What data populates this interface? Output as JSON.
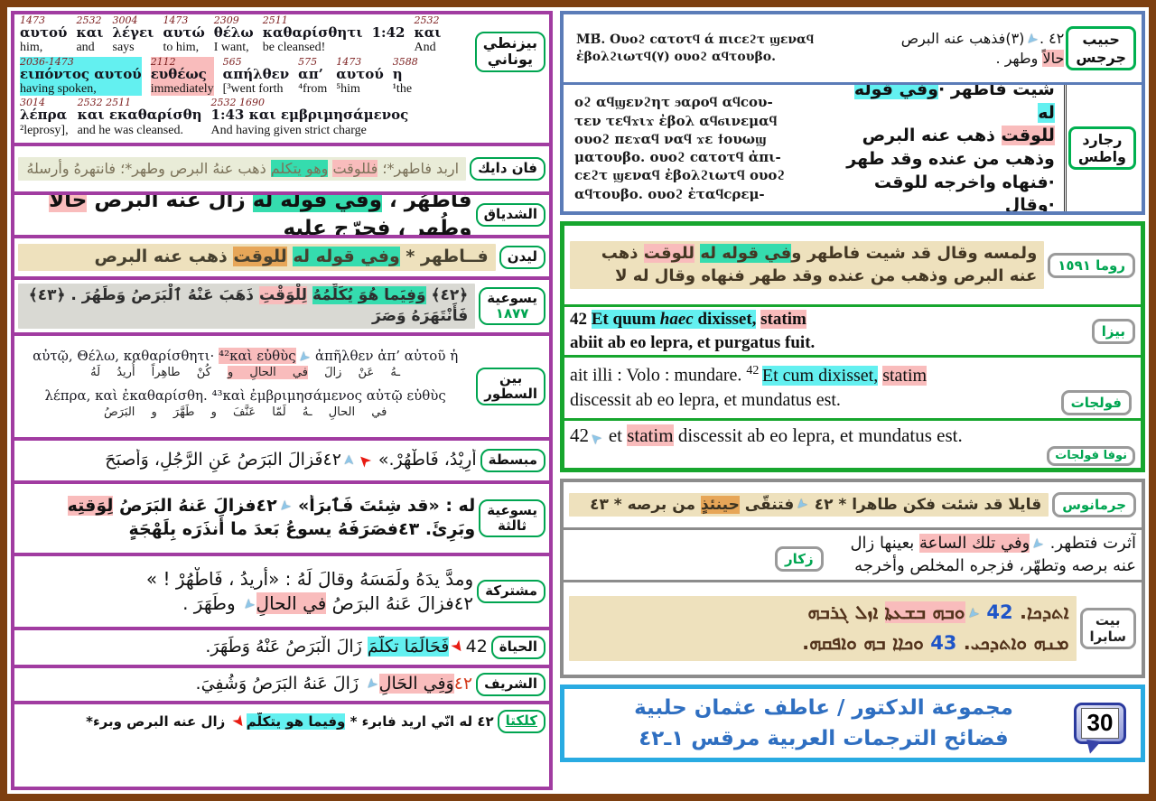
{
  "accent_colors": {
    "purple": "#a13ca1",
    "frame_brown": "#7d3f10",
    "green_border": "#17a62e",
    "blue_border": "#5b7cb8",
    "gray_border": "#8c8c8c",
    "light_blue_border": "#29abe2",
    "label_green": "#00a551",
    "hl_cyan": "#63f0f0",
    "hl_teal": "#35dcae",
    "hl_pink": "#f9bcbc",
    "hl_orange": "#e7a658"
  },
  "interlinear": {
    "label": [
      "بيزنطي",
      "يوناني"
    ],
    "lines": [
      [
        {
          "n": "1473",
          "g": "αυτού",
          "e": "him,"
        },
        {
          "n": "2532",
          "g": "και",
          "e": "and"
        },
        {
          "n": "3004",
          "g": "λέγει",
          "e": "says"
        },
        {
          "n": "1473",
          "g": "αυτώ",
          "e": "to him,"
        },
        {
          "n": "2309",
          "g": "θέλω",
          "e": "I want,"
        },
        {
          "n": "2511",
          "g": "καθαρίσθητι",
          "e": "be cleansed!"
        },
        {
          "n": "",
          "g": "1:42",
          "e": ""
        },
        {
          "n": "2532",
          "g": "και",
          "e": "And"
        }
      ],
      [
        {
          "n": "2036-1473",
          "g": "ειπόντος αυτού",
          "e": "having spoken,",
          "h": "cyan"
        },
        {
          "n": "2112",
          "g": "ευθέως",
          "e": "immediately",
          "h": "pink"
        },
        {
          "n": "565",
          "g": "απήλθεν",
          "e": "[³went forth"
        },
        {
          "n": "575",
          "g": "απ’",
          "e": "⁴from"
        },
        {
          "n": "1473",
          "g": "αυτού",
          "e": "⁵him"
        },
        {
          "n": "3588",
          "g": "η",
          "e": "¹the"
        }
      ],
      [
        {
          "n": "3014",
          "g": "λέπρα",
          "e": "²leprosy],"
        },
        {
          "n": "2532 2511",
          "g": "και εκαθαρίσθη",
          "e": "and he was cleansed."
        },
        {
          "n": "2532  1690",
          "g": "1:43 και  εμβριμησάμενος",
          "e": "And having given strict charge"
        }
      ]
    ]
  },
  "left_rows": [
    {
      "id": "vandyck",
      "label": [
        [
          "فان دايك"
        ]
      ],
      "ms": "ms-green",
      "cls": "vand",
      "lines": [
        {
          "dir": "rtl",
          "segs": [
            {
              "t": "اربد فاطهر*؛ "
            },
            {
              "t": "فللوقت",
              "h": "pink"
            },
            {
              "t": " "
            },
            {
              "t": "وهو يتكلم",
              "h": "teal"
            },
            {
              "t": " ذهب عنهُ البرص وطهر*؛ فانتهرهُ وأرسلهُ"
            }
          ]
        }
      ]
    },
    {
      "id": "shidyaq",
      "label": [
        [
          "الشدياق"
        ]
      ],
      "ms": "",
      "cls": "shid",
      "lines": [
        {
          "dir": "rtl",
          "segs": [
            {
              "t": "فاطّهُر ، "
            },
            {
              "t": "وفي قوله له",
              "h": "teal"
            },
            {
              "t": " زال عنه البرص "
            },
            {
              "t": "حالاً",
              "h": "pink"
            },
            {
              "t": " وطُهر ، فحرّج عليه"
            }
          ]
        }
      ]
    },
    {
      "id": "leiden",
      "label": [
        [
          "ليدن"
        ]
      ],
      "ms": "ms-tan",
      "cls": "leid",
      "lines": [
        {
          "dir": "rtl",
          "segs": [
            {
              "t": "فــاطهر * "
            },
            {
              "t": "وفي قوله له",
              "h": "teal"
            },
            {
              "t": " "
            },
            {
              "t": "للوقت",
              "h": "orange"
            },
            {
              "t": " ذهب عنه البرص"
            }
          ]
        }
      ]
    },
    {
      "id": "jes1877",
      "label": [
        [
          "يسوعية"
        ],
        [
          "١٨٧٧",
          "g"
        ]
      ],
      "ms": "ms-gray",
      "cls": "j77",
      "lines": [
        {
          "dir": "rtl",
          "segs": [
            {
              "t": "﴿٤٢﴾ "
            },
            {
              "t": "وَفِيَما هُوَ يُكَلِّمُهُ",
              "h": "teal"
            },
            {
              "t": " "
            },
            {
              "t": "لِلْوَقْتِ",
              "h": "pink"
            },
            {
              "t": " ذَهَبَ عَنْهُ ٱلْبَرَصُ وَطَهُرَ . ﴿٤٣﴾ فَأَنْتَهَرَهُ وَصَرَ"
            }
          ]
        }
      ]
    },
    {
      "id": "interlin",
      "label": [
        [
          "بين"
        ],
        [
          "السطور"
        ]
      ],
      "ms": "",
      "cls": "",
      "lines": [
        {
          "dir": "ltr",
          "cls": "gkline",
          "segs": [
            {
              "t": "αὐτῷ, Θέλω, καθαρίσθητι· "
            },
            {
              "t": "⁴²καὶ εὐθὺς",
              "h": "pink"
            },
            {
              "a": "blue",
              "d": "dl"
            },
            {
              "t": " ἀπῆλθεν ἀπ’ αὐτοῦ ἡ"
            }
          ]
        },
        {
          "dir": "rtl",
          "cls": "arline",
          "segs": [
            {
              "t": "ـهُ عَنْ زالَ "
            },
            {
              "t": "في الحالِ و",
              "h": "pink"
            },
            {
              "t": " كُنْ طاهِراً أُريدُ لَهُ"
            }
          ]
        },
        {
          "dir": "ltr",
          "cls": "gkline",
          "segs": [
            {
              "t": "λέπρα, καὶ ἐκαθαρίσθη. ⁴³καὶ ἐμβριμησάμενος αὐτῷ εὐθὺς"
            }
          ]
        },
        {
          "dir": "rtl",
          "cls": "arline",
          "segs": [
            {
              "t": "في الحالِ ـهُ لَمّا عَنَّفَ و طَهَّرَ و البَرَصُ"
            }
          ]
        }
      ]
    },
    {
      "id": "mobassata",
      "label": [
        [
          "مبسطة"
        ]
      ],
      "ms": "",
      "cls": "mob",
      "lines": [
        {
          "dir": "rtl",
          "segs": [
            {
              "t": "أُرِيْدُ، فَاطْهُرْ.» "
            },
            {
              "a": "red",
              "d": "ul"
            },
            {
              "a": "blue",
              "d": "u"
            },
            {
              "t": "٤٢فَزالَ البَرَصُ عَنِ الرَّجُلِ، وَأصبَحَ"
            }
          ]
        }
      ]
    },
    {
      "id": "jes3",
      "label": [
        [
          "يسوعية"
        ],
        [
          "ثالثة"
        ]
      ],
      "ms": "",
      "cls": "jes3",
      "lines": [
        {
          "dir": "rtl",
          "segs": [
            {
              "t": "له : «قد شِئتَ فَٱبرَأْ» "
            },
            {
              "a": "blue",
              "d": "dl"
            },
            {
              "t": "٤٢فزالَ عَنهُ البَرَصُ "
            },
            {
              "t": "لِوَقتِه",
              "h": "pink"
            }
          ]
        },
        {
          "dir": "rtl",
          "segs": [
            {
              "t": "وبَرِئَ. ٤٣فصَرَفَهُ يسوعُ بَعدَ ما أَنذَرَه بِلَهْجَةٍ"
            }
          ]
        }
      ]
    },
    {
      "id": "moshtaraka",
      "label": [
        [
          "مشتركة"
        ]
      ],
      "ms": "",
      "cls": "mosh",
      "lines": [
        {
          "dir": "rtl",
          "segs": [
            {
              "t": "ومدَّ يدَهُ ولَمَسَهُ وقالَ لَهُ : «أريدُ ، فَاطْهُرْ ! »"
            }
          ]
        },
        {
          "dir": "rtl",
          "segs": [
            {
              "t": "٤٢فزالَ عَنهُ البرَصُ "
            },
            {
              "t": "في الحالِ",
              "h": "pink"
            },
            {
              "a": "blue",
              "d": "dl"
            },
            {
              "t": " وطَهَرَ ."
            }
          ]
        }
      ]
    },
    {
      "id": "hayat",
      "label": [
        [
          "الحياة"
        ]
      ],
      "ms": "",
      "cls": "hay",
      "lines": [
        {
          "dir": "rtl",
          "segs": [
            {
              "t": "42"
            },
            {
              "a": "red",
              "d": "dr"
            },
            {
              "t": "فَحَالَمَا تكلَّمَ",
              "h": "cyan"
            },
            {
              "t": " زَالَ الْبَرَصُ عَنْهُ وَطَهَرَ."
            }
          ]
        }
      ]
    },
    {
      "id": "sharif",
      "label": [
        [
          "الشريف"
        ]
      ],
      "ms": "",
      "cls": "shar",
      "lines": [
        {
          "dir": "rtl",
          "segs": [
            {
              "t": "٤٢",
              "c": "#d43c1e"
            },
            {
              "t": "وَفِي الحَالِ",
              "h": "pink"
            },
            {
              "a": "blue",
              "d": "dl"
            },
            {
              "t": " زَالَ عَنهُ البَرَصُ وَشُفِيَ."
            }
          ]
        }
      ]
    },
    {
      "id": "calcutta",
      "label": [
        [
          "كلكتا",
          "u"
        ]
      ],
      "ms": "",
      "cls": "calc",
      "lines": [
        {
          "dir": "rtl",
          "segs": [
            {
              "t": "٤٢ له انّي اريد فابرء * "
            },
            {
              "t": "وفيما هو يتكلّم",
              "h": "cyan"
            },
            {
              "a": "red",
              "d": "dr"
            },
            {
              "t": " زال عنه البرص وبرء*"
            }
          ]
        }
      ]
    }
  ],
  "habib": {
    "label": [
      "حبيب",
      "جرجس"
    ],
    "coptic": [
      "Μ̄Β̄. Ουοϩ  ϲατοτϥ  ά  πιϲεϩτ  ϣεναϥ",
      "ἐβολϩιωτϥ(٧) ουοϩ αϥτουβο."
    ],
    "arabic": [
      [
        {
          "t": "٤٢ ."
        },
        {
          "a": "blue",
          "d": "dl"
        },
        {
          "t": "(٣)فذهب عنه البرص"
        }
      ],
      [
        {
          "t": "حالاً",
          "h": "pink"
        },
        {
          "t": " وطهر ."
        }
      ]
    ]
  },
  "rajard": {
    "label": [
      "رجارد",
      "واطس"
    ],
    "coptic": [
      "οϩ αϥϣενϩητ ϧαροϥ αϥϲου-",
      "τεν τεϥϫιϫ ἐβολ αϥϭινεμαϥ",
      "ουοϩ πεϫαϥ ναϥ ϫε ϯουωϣ",
      "ματουβο.  ουοϩ ϲατοτϥ ἀπι-",
      "ϲεϩτ ϣεναϥ ἐβολϩιωτϥ ουοϩ",
      "αϥτουβο.   ουοϩ  ἐταϥϲρεμ-"
    ],
    "arabic": [
      [
        {
          "t": "شيت فاطهر ·"
        },
        {
          "t": "وفي قوله له",
          "h": "cyan"
        }
      ],
      [
        {
          "t": "للوقت",
          "h": "pink"
        },
        {
          "t": " ذهب عنه البرص"
        }
      ],
      [
        {
          "t": "وذهب من عنده وقد طهر"
        }
      ],
      [
        {
          "t": "·فنهاه واخرجه للوقت ·وقال"
        }
      ]
    ]
  },
  "roma": {
    "label": "روما ١٥٩١",
    "lines": [
      [
        {
          "t": "ولمسه وقال قد شيت فاطهر و"
        },
        {
          "t": "في قوله له",
          "h": "teal"
        },
        {
          "t": " "
        },
        {
          "t": "للوقت",
          "h": "pink"
        },
        {
          "t": " ذهب"
        }
      ],
      [
        {
          "t": "عنه البرص وذهب من عنده وقد طهر فنهاه وقال له لا"
        }
      ]
    ]
  },
  "beza": {
    "label": "بيزا",
    "lines": [
      [
        {
          "t": "42 "
        },
        {
          "t": "Et quum ",
          "h": "cyan"
        },
        {
          "t": "haec",
          "h": "cyan",
          "i": true
        },
        {
          "t": " dixisset,",
          "h": "cyan"
        },
        {
          "t": " "
        },
        {
          "t": "statim",
          "h": "pink"
        }
      ],
      [
        {
          "t": "abiit ab eo lepra, et purgatus fuit."
        }
      ]
    ]
  },
  "vulgate": {
    "label": "فولجات",
    "lines": [
      [
        {
          "t": "ait illi : Volo : mundare. "
        },
        {
          "t": "42 ",
          "sup": true
        },
        {
          "t": "Et cum dixisset,",
          "h": "cyan"
        },
        {
          "t": " "
        },
        {
          "t": "statim",
          "h": "pink"
        }
      ],
      [
        {
          "t": "discessit ab eo lepra, et mundatus est."
        }
      ]
    ]
  },
  "nova": {
    "label": "نوفا فولجات",
    "lines": [
      [
        {
          "t": "42"
        },
        {
          "a": "blue",
          "d": "ul"
        },
        {
          "t": " et "
        },
        {
          "t": "statim",
          "h": "pink"
        },
        {
          "t": " discessit ab eo lepra, et mundatus est."
        }
      ]
    ]
  },
  "germanos": {
    "label": "جرمانوس",
    "lines": [
      [
        {
          "t": "قايلا قد شئت فكن طاهرا * ٤٢ "
        },
        {
          "a": "blue",
          "d": "dl"
        },
        {
          "t": "فتنقّى "
        },
        {
          "t": "حينئذٍ",
          "h": "orange"
        },
        {
          "t": " من برصه * ٤٣"
        }
      ]
    ]
  },
  "zakkar": {
    "label": "زكار",
    "lines": [
      [
        {
          "t": "آثرت فتطهر. "
        },
        {
          "a": "blue",
          "d": "dl"
        },
        {
          "t": "وفي تلك الساعة",
          "h": "pink"
        },
        {
          "t": " بعينها زال"
        }
      ],
      [
        {
          "t": "عنه برصه وتطهّر، فزجره المخلص وأخرجه"
        }
      ]
    ]
  },
  "beitsabra": {
    "label": [
      "بيت",
      "سابرا"
    ],
    "lines": [
      [
        {
          "t": "ܐܬܕܟܐ. "
        },
        {
          "t": "42",
          "c": "#1f55c8"
        },
        {
          "t": " "
        },
        {
          "a": "blue",
          "d": "dl"
        },
        {
          "t": "ܘܒܗ ܒܫܥܬܐ",
          "h": "pink"
        },
        {
          "t": " ܐܙܠ ܓܪܒܗ"
        }
      ],
      [
        {
          "t": "ܡܢܗ ܘܐܬܕܟܝ. "
        },
        {
          "t": "43",
          "c": "#1f55c8"
        },
        {
          "t": " ܘܟܐܐ ܒܗ ܘܐܦܩܗ."
        }
      ]
    ]
  },
  "banner": {
    "title_line1": "مجموعة الدكتور / عاطف عثمان حلبية",
    "title_line2": "فضائح الترجمات العربية  مرقس  ١ـ٤٢",
    "badge": "30"
  }
}
